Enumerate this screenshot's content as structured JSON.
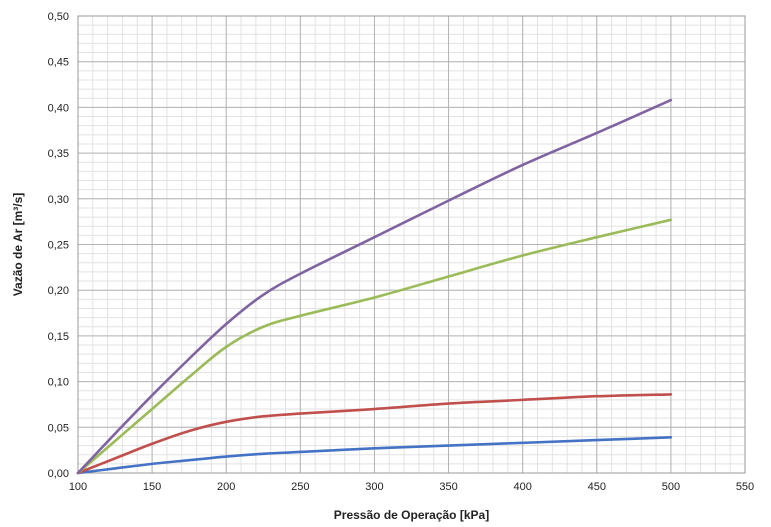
{
  "chart_data": {
    "type": "line",
    "title": "",
    "xlabel": "Pressão de Operação [kPa]",
    "ylabel": "Vazão de Ar [m³/s]",
    "xlim": [
      100,
      550
    ],
    "ylim": [
      0,
      0.5
    ],
    "x_major_ticks": [
      100,
      150,
      200,
      250,
      300,
      350,
      400,
      450,
      500,
      550
    ],
    "y_major_ticks": [
      0.0,
      0.05,
      0.1,
      0.15,
      0.2,
      0.25,
      0.3,
      0.35,
      0.4,
      0.45,
      0.5
    ],
    "x_tick_labels": [
      "100",
      "150",
      "200",
      "250",
      "300",
      "350",
      "400",
      "450",
      "500",
      "550"
    ],
    "y_tick_labels": [
      "0,00",
      "0,05",
      "0,10",
      "0,15",
      "0,20",
      "0,25",
      "0,30",
      "0,35",
      "0,40",
      "0,45",
      "0,50"
    ],
    "x_minor_step": 10,
    "y_minor_step": 0.01,
    "grid": true,
    "legend": "none",
    "series": [
      {
        "color": "#4472c4",
        "x": [
          100,
          125,
          150,
          175,
          200,
          225,
          250,
          300,
          350,
          400,
          450,
          500
        ],
        "y": [
          0.0,
          0.005,
          0.01,
          0.014,
          0.018,
          0.021,
          0.023,
          0.027,
          0.03,
          0.033,
          0.036,
          0.039
        ]
      },
      {
        "color": "#c0504d",
        "x": [
          100,
          125,
          150,
          175,
          200,
          225,
          250,
          300,
          350,
          400,
          450,
          500
        ],
        "y": [
          0.0,
          0.016,
          0.032,
          0.046,
          0.056,
          0.062,
          0.065,
          0.07,
          0.076,
          0.08,
          0.084,
          0.086
        ]
      },
      {
        "color": "#9bbb59",
        "x": [
          100,
          125,
          150,
          175,
          200,
          225,
          250,
          300,
          350,
          400,
          450,
          500
        ],
        "y": [
          0.0,
          0.035,
          0.07,
          0.105,
          0.138,
          0.16,
          0.172,
          0.192,
          0.215,
          0.238,
          0.258,
          0.277
        ]
      },
      {
        "color": "#8064a2",
        "x": [
          100,
          125,
          150,
          175,
          200,
          225,
          250,
          300,
          350,
          400,
          450,
          500
        ],
        "y": [
          0.0,
          0.043,
          0.085,
          0.125,
          0.163,
          0.195,
          0.218,
          0.258,
          0.298,
          0.337,
          0.372,
          0.408
        ]
      }
    ]
  }
}
